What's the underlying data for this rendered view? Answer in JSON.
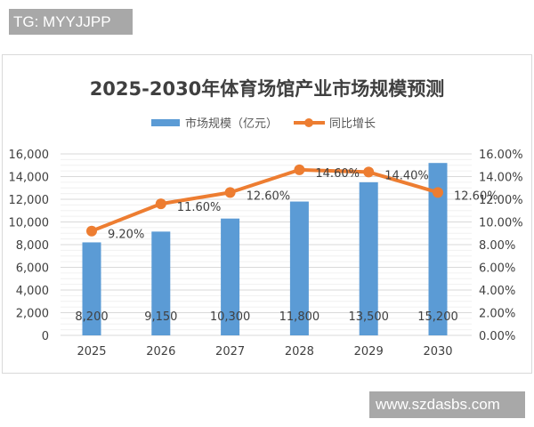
{
  "watermarks": {
    "top_left": "TG: MYYJJPP",
    "bottom_right": "www.szdasbs.com"
  },
  "colors": {
    "bar": "#5b9bd5",
    "line": "#ed7d31",
    "grid": "#e3e3e3",
    "text": "#404040",
    "title": "#3f3f3f"
  },
  "chart_data": {
    "type": "bar+line",
    "title": "2025-2030年体育场馆产业市场规模预测",
    "categories": [
      "2025",
      "2026",
      "2027",
      "2028",
      "2029",
      "2030"
    ],
    "series": [
      {
        "name": "市场规模（亿元）",
        "type": "bar",
        "axis": "left",
        "values": [
          8200,
          9150,
          10300,
          11800,
          13500,
          15200
        ],
        "labels": [
          "8,200",
          "9,150",
          "10,300",
          "11,800",
          "13,500",
          "15,200"
        ]
      },
      {
        "name": "同比增长",
        "type": "line",
        "axis": "right",
        "values": [
          9.2,
          11.6,
          12.6,
          14.6,
          14.4,
          12.6
        ],
        "labels": [
          "9.20%",
          "11.60%",
          "12.60%",
          "14.60%",
          "14.40%",
          "12.60%"
        ]
      }
    ],
    "left_axis": {
      "min": 0,
      "max": 16000,
      "step": 2000,
      "ticks": [
        "0",
        "2,000",
        "4,000",
        "6,000",
        "8,000",
        "10,000",
        "12,000",
        "14,000",
        "16,000"
      ]
    },
    "right_axis": {
      "min": 0,
      "max": 16,
      "step": 2,
      "ticks": [
        "0.00%",
        "2.00%",
        "4.00%",
        "6.00%",
        "8.00%",
        "10.00%",
        "12.00%",
        "14.00%",
        "16.00%"
      ]
    },
    "legend_position": "top",
    "grid": true
  }
}
